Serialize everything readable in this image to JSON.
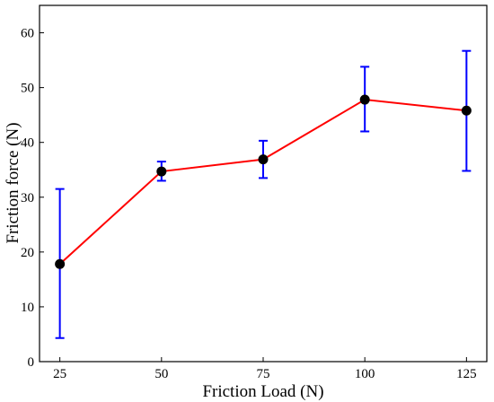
{
  "chart_data": {
    "type": "line",
    "xlabel": "Friction Load (N)",
    "ylabel": "Friction force (N)",
    "x": [
      25,
      50,
      75,
      100,
      125
    ],
    "xticks": [
      25,
      50,
      75,
      100,
      125
    ],
    "yticks": [
      0,
      10,
      20,
      30,
      40,
      50,
      60
    ],
    "xlim": [
      20,
      130
    ],
    "ylim": [
      0,
      65
    ],
    "series": [
      {
        "values": [
          17.8,
          34.7,
          36.9,
          47.8,
          45.8
        ],
        "error_low": [
          4.3,
          33.0,
          33.5,
          42.0,
          34.8
        ],
        "error_high": [
          31.5,
          36.5,
          40.3,
          53.8,
          56.7
        ],
        "line_color": "#ff0000",
        "marker_color": "#000000",
        "error_color": "#0000ff",
        "marker": "circle"
      }
    ],
    "grid": false,
    "legend": "none"
  }
}
